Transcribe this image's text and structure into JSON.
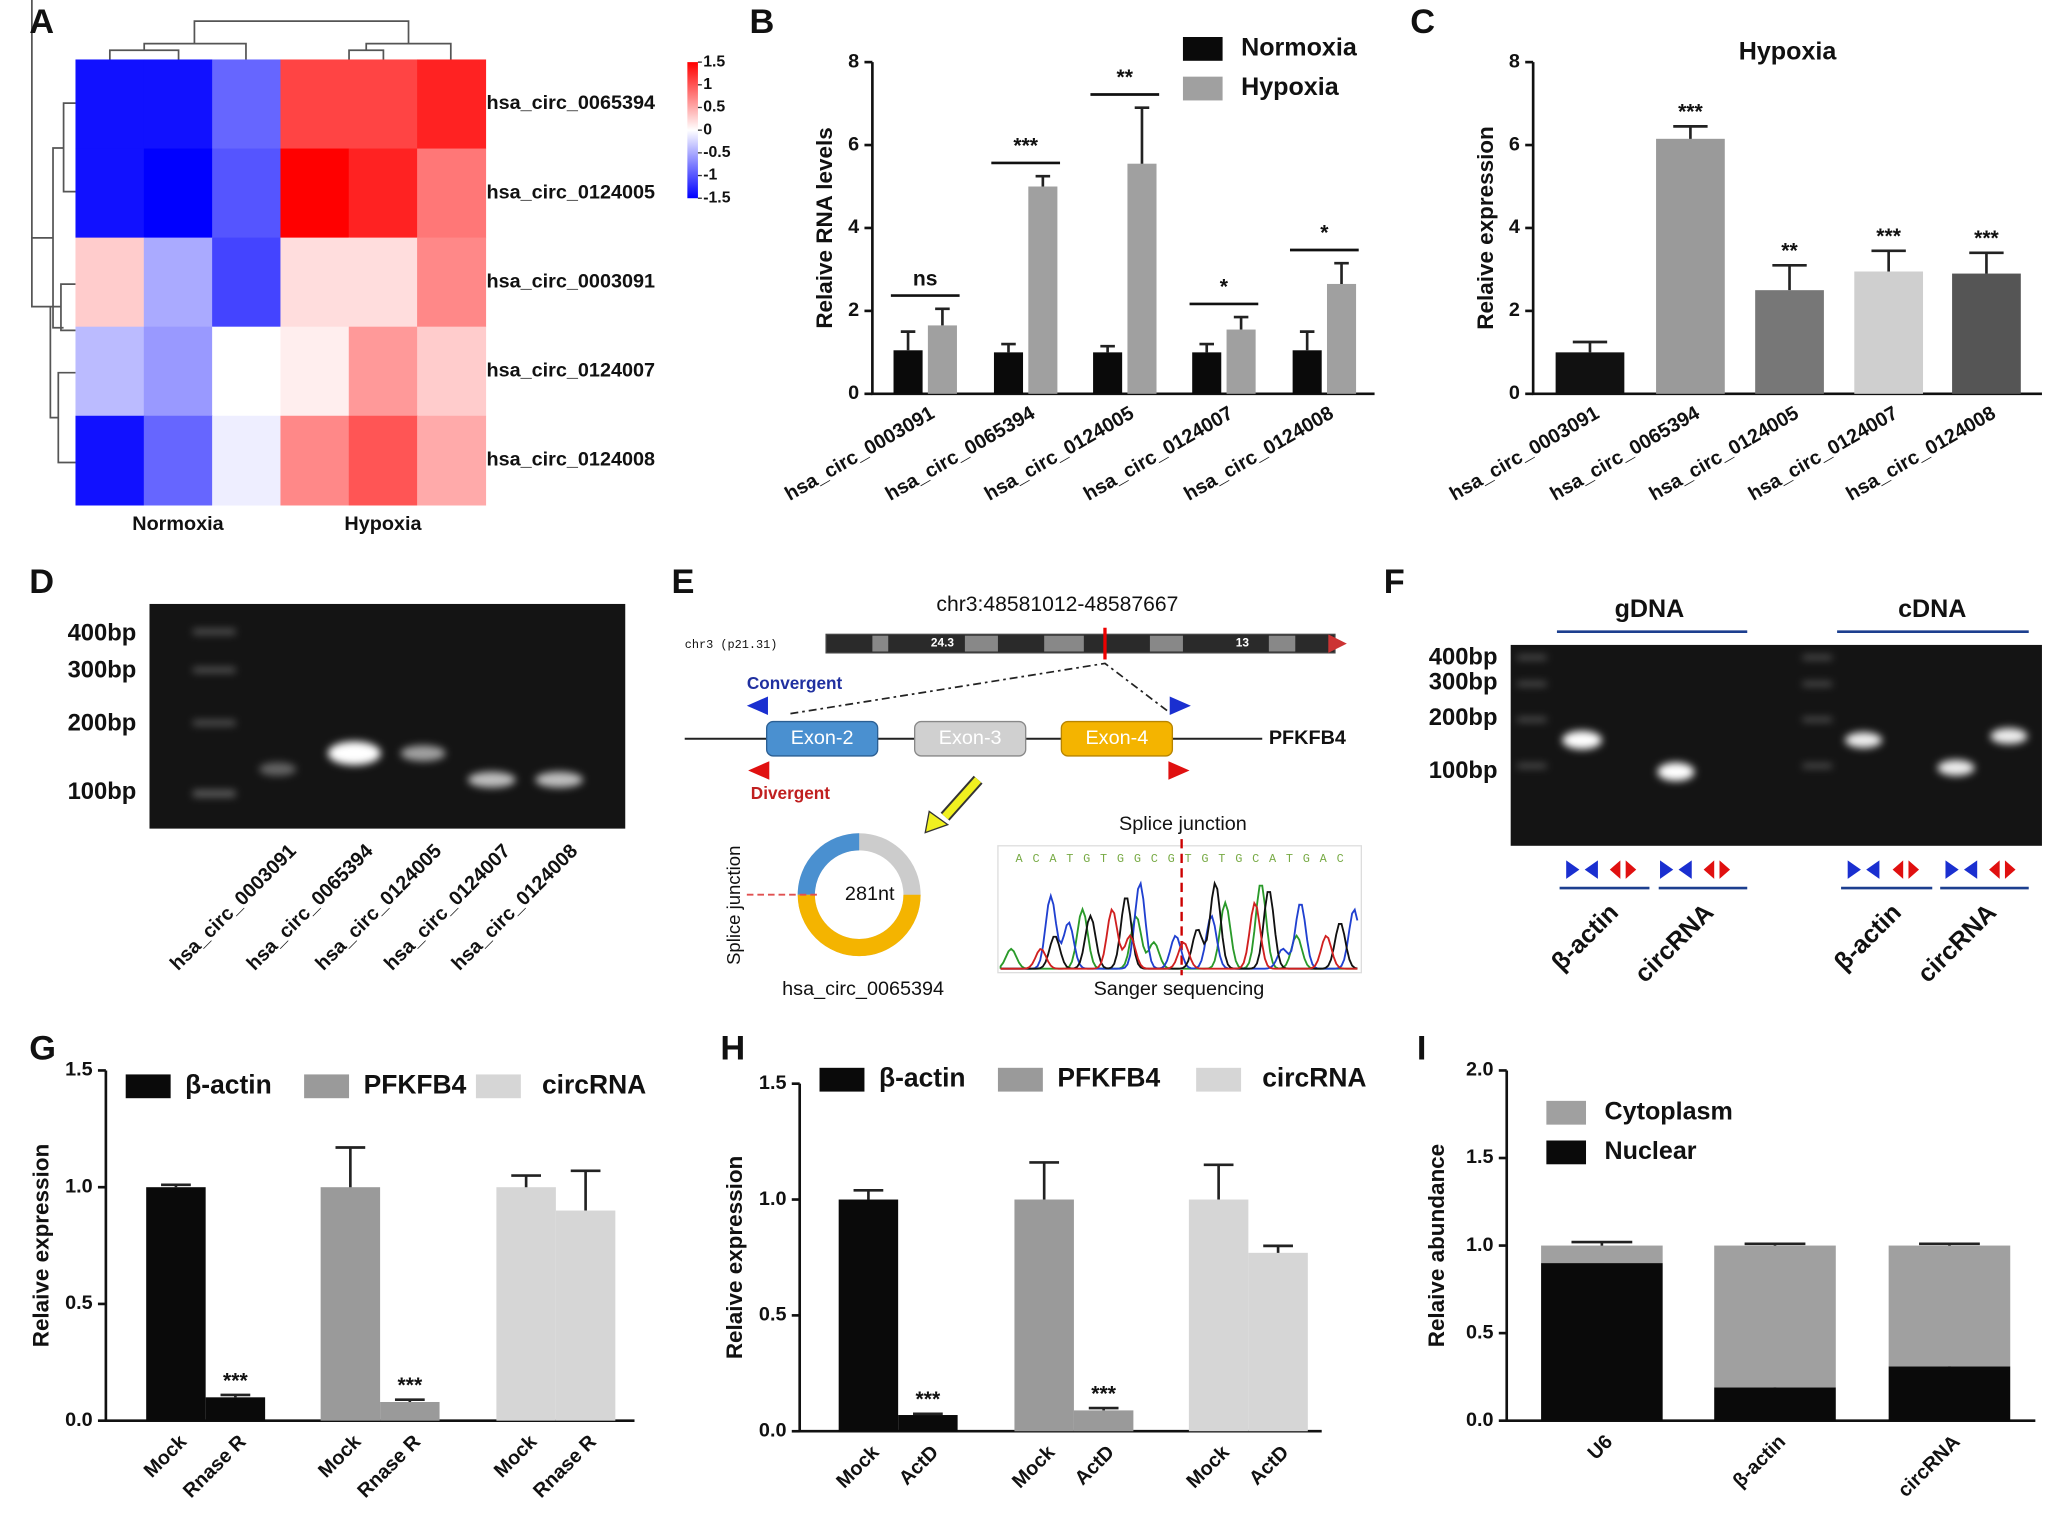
{
  "panels": [
    "A",
    "B",
    "C",
    "D",
    "E",
    "F",
    "G",
    "H",
    "I"
  ],
  "chart_data": [
    {
      "type": "heatmap",
      "rows": [
        "hsa_circ_0065394",
        "hsa_circ_0124005",
        "hsa_circ_0003091",
        "hsa_circ_0124007",
        "hsa_circ_0124008"
      ],
      "column_groups": [
        "Normoxia",
        "Hypoxia"
      ],
      "values": [
        [
          -1.4,
          -1.4,
          -0.9,
          1.1,
          1.1,
          1.3
        ],
        [
          -1.4,
          -1.6,
          -1.0,
          1.5,
          1.3,
          0.8
        ],
        [
          0.3,
          -0.5,
          -1.1,
          0.2,
          0.2,
          0.7
        ],
        [
          -0.4,
          -0.6,
          0,
          0.1,
          0.6,
          0.3
        ],
        [
          -1.4,
          -0.9,
          -0.1,
          0.7,
          1.0,
          0.5
        ]
      ],
      "colorlim": [
        -1.5,
        1.5
      ],
      "colorbar_ticks": [
        1.5,
        1,
        0.5,
        0,
        -0.5,
        -1,
        -1.5
      ],
      "colormap": [
        "#0000ff",
        "#ffffff",
        "#ff0000"
      ]
    },
    {
      "type": "bar",
      "ylabel": "Relaive RNA levels",
      "categories": [
        "hsa_circ_0003091",
        "hsa_circ_0065394",
        "hsa_circ_0124005",
        "hsa_circ_0124007",
        "hsa_circ_0124008"
      ],
      "series": [
        {
          "name": "Normoxia",
          "color": "#0a0a0a",
          "values": [
            1.05,
            1.0,
            1.0,
            1.0,
            1.05
          ],
          "errors": [
            0.45,
            0.2,
            0.15,
            0.2,
            0.45
          ]
        },
        {
          "name": "Hypoxia",
          "color": "#a0a0a0",
          "values": [
            1.65,
            5.0,
            5.55,
            1.55,
            2.65
          ],
          "errors": [
            0.4,
            0.25,
            1.35,
            0.3,
            0.5
          ]
        }
      ],
      "annotations": [
        "ns",
        "***",
        "**",
        "*",
        "*"
      ],
      "ylim": [
        0,
        8
      ],
      "yticks": [
        0,
        2,
        4,
        6,
        8
      ]
    },
    {
      "type": "bar",
      "title": "Hypoxia",
      "ylabel": "Relaive expression",
      "categories": [
        "hsa_circ_0003091",
        "hsa_circ_0065394",
        "hsa_circ_0124005",
        "hsa_circ_0124007",
        "hsa_circ_0124008"
      ],
      "series": [
        {
          "values": [
            1.0,
            6.15,
            2.5,
            2.95,
            2.9
          ],
          "errors": [
            0.25,
            0.3,
            0.6,
            0.5,
            0.5
          ]
        }
      ],
      "colors": [
        "#111111",
        "#9a9a9a",
        "#777777",
        "#cfcfcf",
        "#555555"
      ],
      "annotations": [
        null,
        "***",
        "**",
        "***",
        "***"
      ],
      "ylim": [
        0,
        8
      ],
      "yticks": [
        0,
        2,
        4,
        6,
        8
      ]
    },
    {
      "type": "bar",
      "ylabel": "Relaive expression",
      "categories": [
        "Mock",
        "Rnase R",
        "Mock",
        "Rnase R",
        "Mock",
        "Rnase R"
      ],
      "series": [
        {
          "name": "β-actin",
          "color": "#0a0a0a",
          "values": [
            1.0,
            0.1,
            null,
            null,
            null,
            null
          ],
          "errors": [
            0.01,
            0.01,
            null,
            null,
            null,
            null
          ]
        },
        {
          "name": "PFKFB4",
          "color": "#9a9a9a",
          "values": [
            null,
            null,
            1.0,
            0.08,
            null,
            null
          ],
          "errors": [
            null,
            null,
            0.17,
            0.01,
            null,
            null
          ]
        },
        {
          "name": "circRNA",
          "color": "#d6d6d6",
          "values": [
            null,
            null,
            null,
            null,
            1.0,
            0.9
          ],
          "errors": [
            null,
            null,
            null,
            null,
            0.05,
            0.17
          ]
        }
      ],
      "annotations": [
        null,
        "***",
        null,
        "***",
        null,
        null
      ],
      "ylim": [
        0,
        1.5
      ],
      "yticks": [
        {
          "value": 0,
          "label": "0.0"
        },
        {
          "value": 0.5,
          "label": "0.5"
        },
        {
          "value": 1,
          "label": "1.0"
        },
        {
          "value": 1.5,
          "label": "1.5"
        }
      ]
    },
    {
      "type": "bar",
      "ylabel": "Relaive expression",
      "categories": [
        "Mock",
        "ActD",
        "Mock",
        "ActD",
        "Mock",
        "ActD"
      ],
      "series": [
        {
          "name": "β-actin",
          "color": "#0a0a0a",
          "values": [
            1.0,
            0.07,
            null,
            null,
            null,
            null
          ],
          "errors": [
            0.04,
            0.005,
            null,
            null,
            null,
            null
          ]
        },
        {
          "name": "PFKFB4",
          "color": "#9a9a9a",
          "values": [
            null,
            null,
            1.0,
            0.09,
            null,
            null
          ],
          "errors": [
            null,
            null,
            0.16,
            0.01,
            null,
            null
          ]
        },
        {
          "name": "circRNA",
          "color": "#d6d6d6",
          "values": [
            null,
            null,
            null,
            null,
            1.0,
            0.77
          ],
          "errors": [
            null,
            null,
            null,
            null,
            0.15,
            0.03
          ]
        }
      ],
      "annotations": [
        null,
        "***",
        null,
        "***",
        null,
        null
      ],
      "ylim": [
        0,
        1.5
      ],
      "yticks": [
        {
          "value": 0,
          "label": "0.0"
        },
        {
          "value": 0.5,
          "label": "0.5"
        },
        {
          "value": 1,
          "label": "1.0"
        },
        {
          "value": 1.5,
          "label": "1.5"
        }
      ]
    },
    {
      "type": "stacked_bar",
      "ylabel": "Relaive abundance",
      "categories": [
        "U6",
        "β-actin",
        "circRNA"
      ],
      "series": [
        {
          "name": "Nuclear",
          "color": "#0a0a0a",
          "values": [
            0.9,
            0.19,
            0.31
          ],
          "errors": [
            0.02,
            0.01,
            0.01
          ]
        },
        {
          "name": "Cytoplasm",
          "color": "#a0a0a0",
          "values": [
            0.1,
            0.81,
            0.69
          ],
          "errors": [
            0.02,
            0.01,
            0.01
          ]
        }
      ],
      "ylim": [
        0,
        2
      ],
      "yticks": [
        {
          "value": 0,
          "label": "0.0"
        },
        {
          "value": 0.5,
          "label": "0.5"
        },
        {
          "value": 1,
          "label": "1.0"
        },
        {
          "value": 1.5,
          "label": "1.5"
        },
        {
          "value": 2,
          "label": "2.0"
        }
      ]
    }
  ],
  "gel_d": {
    "ladder": [
      "400bp",
      "300bp",
      "200bp",
      "100bp"
    ],
    "lanes": [
      "hsa_circ_0003091",
      "hsa_circ_0065394",
      "hsa_circ_0124005",
      "hsa_circ_0124007",
      "hsa_circ_0124008"
    ]
  },
  "diagram_e": {
    "region": "chr3:48581012-48587667",
    "chromosome": "chr3 (p21.31)",
    "band_left": "24.3",
    "band_right": "13",
    "convergent": "Convergent",
    "divergent": "Divergent",
    "exons": [
      "Exon-2",
      "Exon-3",
      "Exon-4"
    ],
    "gene": "PFKFB4",
    "circle_side_label": "Splice junction",
    "circle_length": "281nt",
    "circle_name": "hsa_circ_0065394",
    "junction_label": "Splice junction",
    "sequence": "A C A T G T G G C G T G T G C A T G A C",
    "sequencing_label": "Sanger sequencing"
  },
  "gel_f": {
    "groups": [
      "gDNA",
      "cDNA"
    ],
    "ladder": [
      "400bp",
      "300bp",
      "200bp",
      "100bp"
    ],
    "lanes": [
      "β-actin",
      "circRNA",
      "β-actin",
      "circRNA"
    ]
  }
}
